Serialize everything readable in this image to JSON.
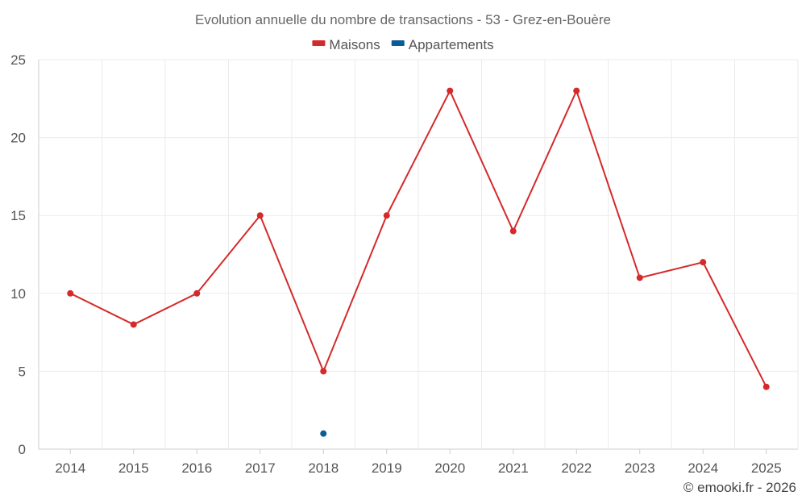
{
  "chart_data": {
    "type": "line",
    "title": "Evolution annuelle du nombre de transactions - 53 - Grez-en-Bouère",
    "categories": [
      "2014",
      "2015",
      "2016",
      "2017",
      "2018",
      "2019",
      "2020",
      "2021",
      "2022",
      "2023",
      "2024",
      "2025"
    ],
    "series": [
      {
        "name": "Maisons",
        "color": "#d42a2a",
        "values": [
          10,
          8,
          10,
          15,
          5,
          15,
          23,
          14,
          23,
          11,
          12,
          4
        ]
      },
      {
        "name": "Appartements",
        "color": "#0a5c96",
        "values": [
          null,
          null,
          null,
          null,
          1,
          null,
          null,
          null,
          null,
          null,
          null,
          null
        ]
      }
    ],
    "ylim": [
      0,
      25
    ],
    "yticks": [
      0,
      5,
      10,
      15,
      20,
      25
    ],
    "grid": true,
    "legend_position": "top-center"
  },
  "credit": "© emooki.fr - 2026"
}
